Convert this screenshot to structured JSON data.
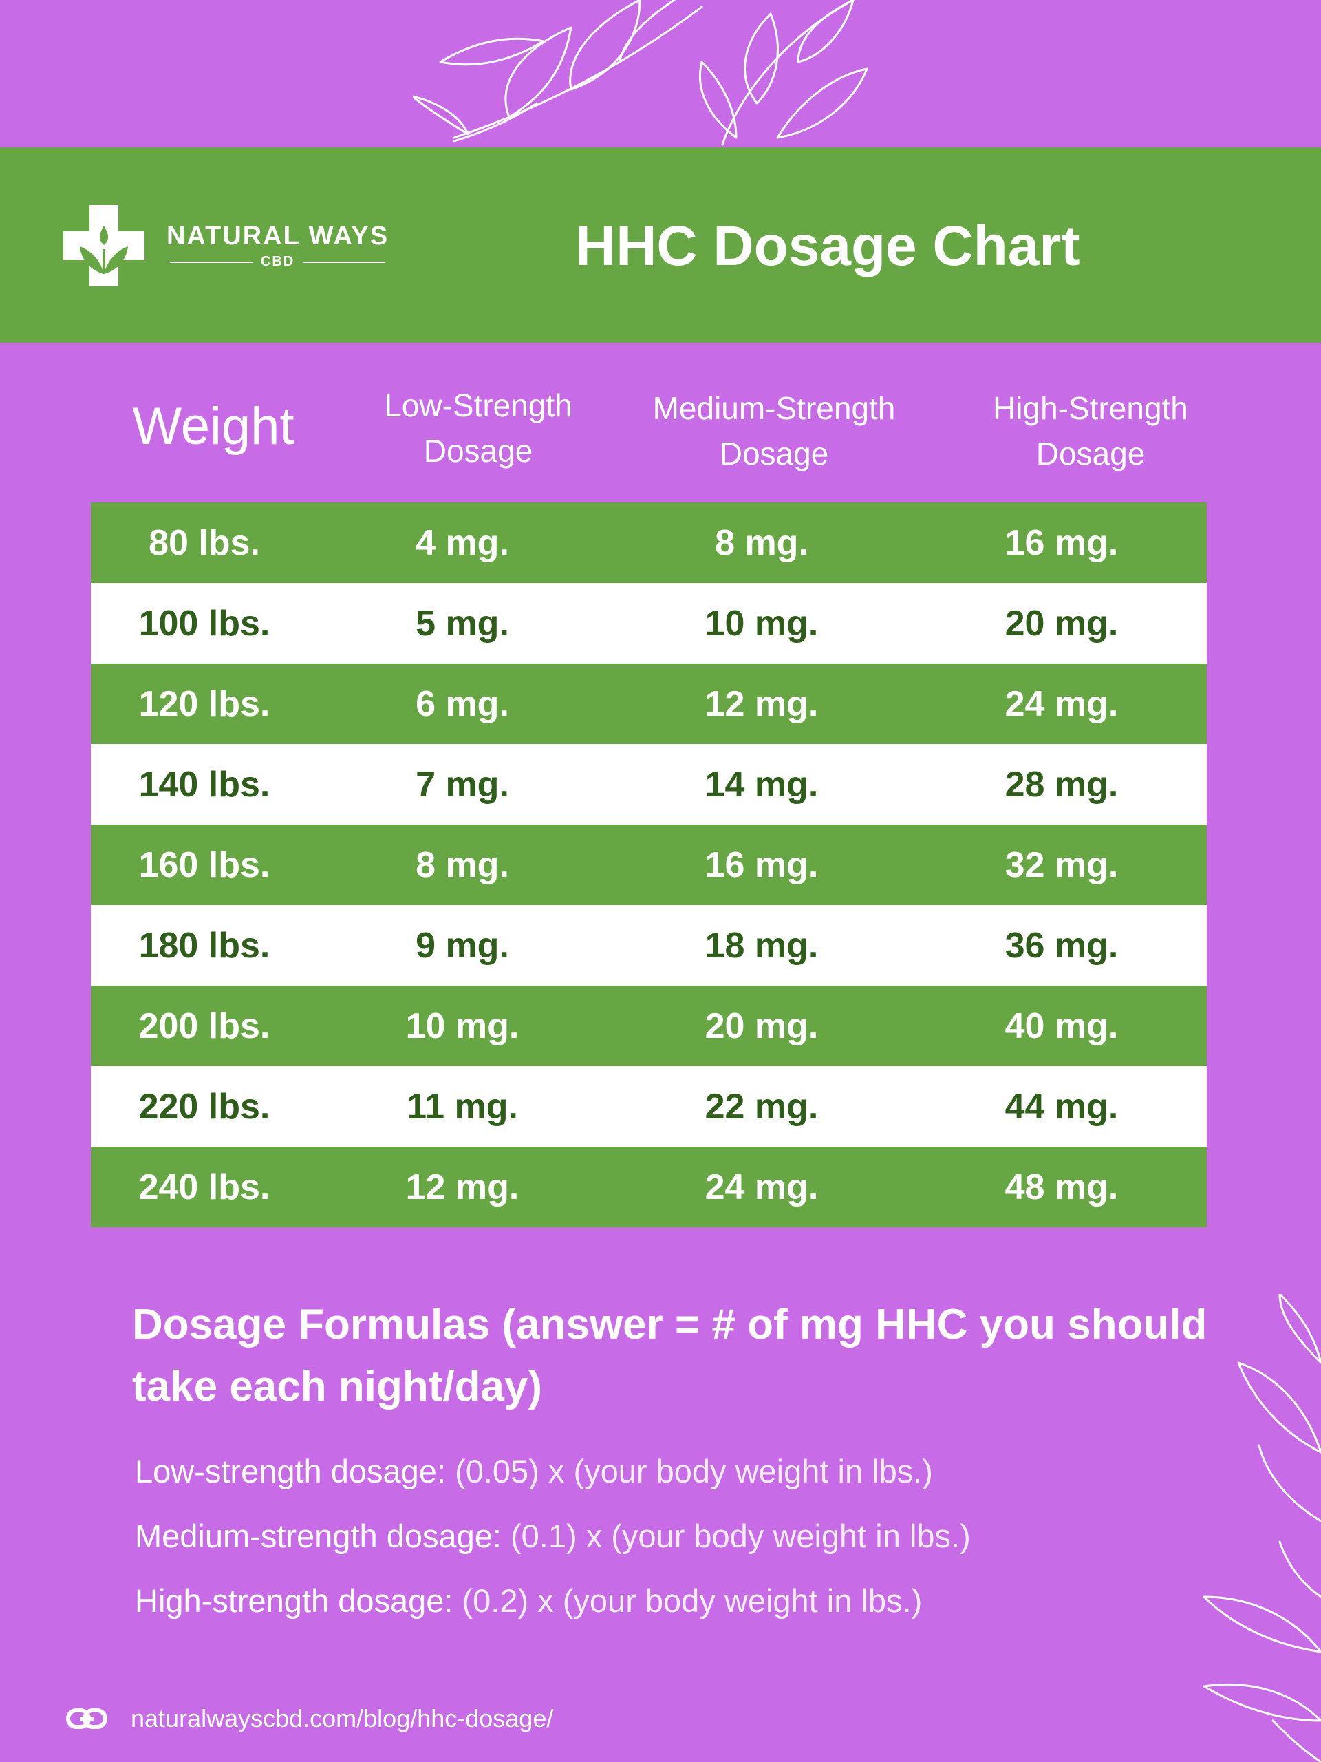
{
  "header": {
    "brand_name": "NATURAL WAYS",
    "brand_sub": "CBD",
    "title": "HHC Dosage Chart"
  },
  "columns": {
    "weight": "Weight",
    "low": [
      "Low-Strength",
      "Dosage"
    ],
    "medium": [
      "Medium-Strength",
      "Dosage"
    ],
    "high": [
      "High-Strength",
      "Dosage"
    ]
  },
  "rows": [
    {
      "weight": "80 lbs.",
      "low": "4 mg.",
      "medium": "8 mg.",
      "high": "16 mg."
    },
    {
      "weight": "100 lbs.",
      "low": "5 mg.",
      "medium": "10 mg.",
      "high": "20 mg."
    },
    {
      "weight": "120 lbs.",
      "low": "6 mg.",
      "medium": "12 mg.",
      "high": "24 mg."
    },
    {
      "weight": "140 lbs.",
      "low": "7 mg.",
      "medium": "14 mg.",
      "high": "28 mg."
    },
    {
      "weight": "160 lbs.",
      "low": "8 mg.",
      "medium": "16 mg.",
      "high": "32 mg."
    },
    {
      "weight": "180 lbs.",
      "low": "9 mg.",
      "medium": "18 mg.",
      "high": "36 mg."
    },
    {
      "weight": "200 lbs.",
      "low": "10 mg.",
      "medium": "20 mg.",
      "high": "40 mg."
    },
    {
      "weight": "220 lbs.",
      "low": "11 mg.",
      "medium": "22 mg.",
      "high": "44 mg."
    },
    {
      "weight": "240 lbs.",
      "low": "12 mg.",
      "medium": "24 mg.",
      "high": "48 mg."
    }
  ],
  "formulas": {
    "title": "Dosage Formulas (answer = # of mg HHC you should take each night/day)",
    "items": [
      {
        "label": "Low-strength dosage:",
        "expr": " (0.05) x (your body weight in lbs.)"
      },
      {
        "label": "Medium-strength dosage:",
        "expr": " (0.1) x (your body weight in lbs.)"
      },
      {
        "label": "High-strength dosage:",
        "expr": " (0.2) x (your body weight in lbs.)"
      }
    ]
  },
  "footer": {
    "url": "naturalwayscbd.com/blog/hhc-dosage/",
    "icon": "link-icon"
  },
  "colors": {
    "background": "#c76ce6",
    "green": "#67a743",
    "dark_green_text": "#2f5e1a",
    "white": "#ffffff"
  }
}
